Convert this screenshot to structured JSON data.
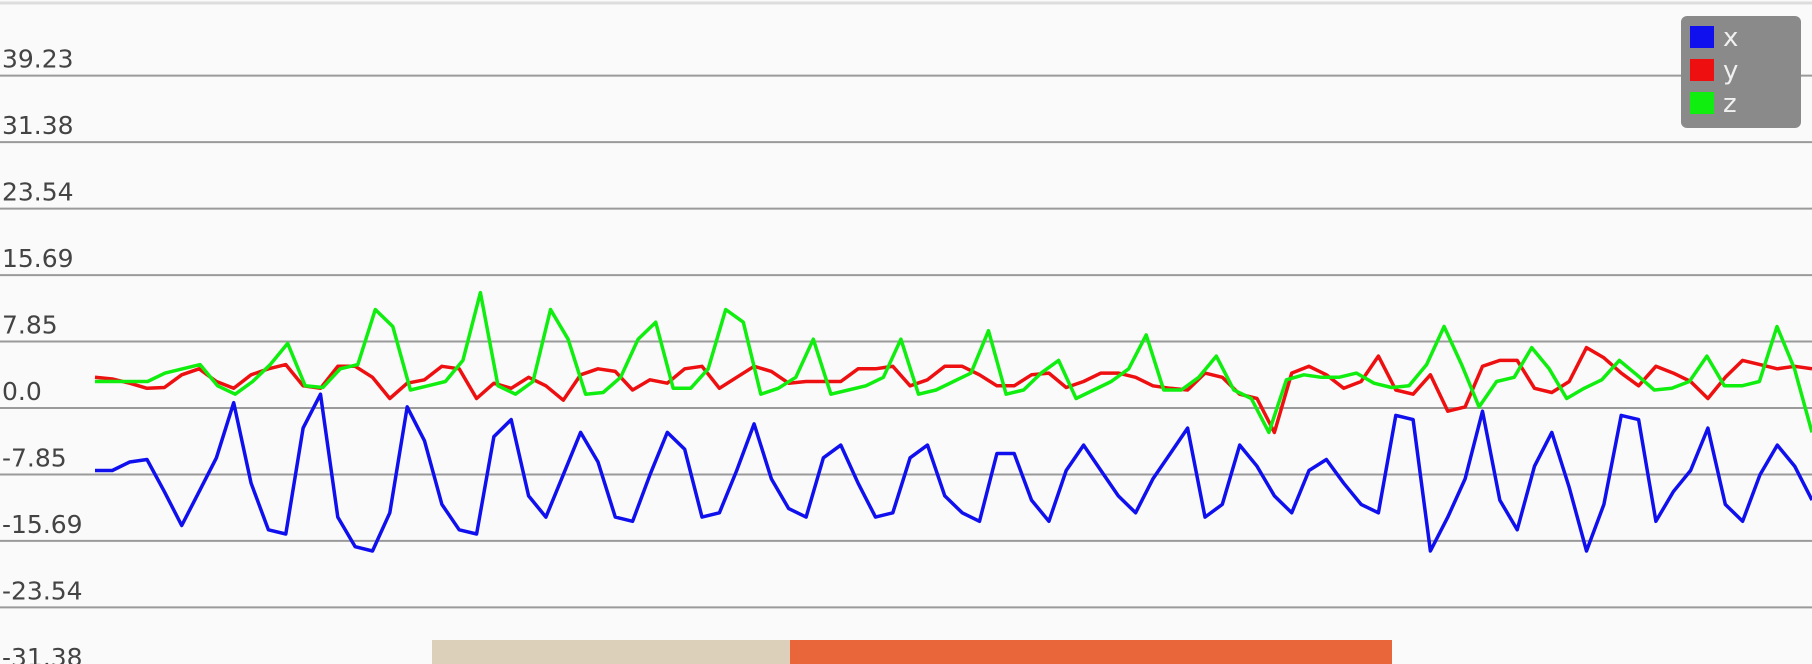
{
  "chart_data": {
    "type": "line",
    "y_ticks": [
      "39.23",
      "31.38",
      "23.54",
      "15.69",
      "7.85",
      "0.0",
      "-7.85",
      "-15.69",
      "-23.54",
      "-31.38"
    ],
    "y_tick_values": [
      39.23,
      31.38,
      23.54,
      15.69,
      7.85,
      0.0,
      -7.85,
      -15.69,
      -23.54,
      -31.38
    ],
    "ylim": [
      -31.38,
      45
    ],
    "grid": true,
    "legend_position": "top-right",
    "series": [
      {
        "name": "x",
        "color": "#1010ee",
        "values": [
          -9.5,
          -9.5,
          -8.5,
          -8.2,
          -12,
          -16,
          -12,
          -8,
          -1.5,
          -11,
          -16.5,
          -17,
          -4.5,
          -0.5,
          -15,
          -18.5,
          -19,
          -14.5,
          -2,
          -6,
          -13.5,
          -16.5,
          -17,
          -5.5,
          -3.5,
          -12.5,
          -15,
          -10,
          -5,
          -8.5,
          -15,
          -15.5,
          -10,
          -5,
          -7,
          -15,
          -14.5,
          -9.5,
          -4,
          -10.5,
          -14,
          -15,
          -8,
          -6.5,
          -11,
          -15,
          -14.5,
          -8,
          -6.5,
          -12.5,
          -14.5,
          -15.5,
          -7.5,
          -7.5,
          -13,
          -15.5,
          -9.5,
          -6.5,
          -9.5,
          -12.5,
          -14.5,
          -10.5,
          -7.5,
          -4.5,
          -15,
          -13.5,
          -6.5,
          -9,
          -12.5,
          -14.5,
          -9.5,
          -8.2,
          -11,
          -13.5,
          -14.5,
          -3,
          -3.5,
          -19,
          -15,
          -10.5,
          -2.5,
          -13,
          -16.5,
          -9,
          -5,
          -11.5,
          -19,
          -13.5,
          -3,
          -3.5,
          -15.5,
          -12,
          -9.5,
          -4.5,
          -13.5,
          -15.5,
          -10,
          -6.5,
          -9,
          -13
        ]
      },
      {
        "name": "y",
        "color": "#ee1010",
        "values": [
          1.5,
          1.3,
          0.8,
          0.2,
          0.3,
          1.8,
          2.5,
          1,
          0.2,
          1.8,
          2.5,
          3,
          0.5,
          0.2,
          2.8,
          2.8,
          1.5,
          -1,
          0.8,
          1.2,
          2.8,
          2.5,
          -1,
          0.8,
          0.2,
          1.5,
          0.5,
          -1.2,
          1.8,
          2.5,
          2.2,
          0,
          1.2,
          0.8,
          2.5,
          2.8,
          0.2,
          1.5,
          2.8,
          2.2,
          0.8,
          1,
          1,
          1,
          2.5,
          2.5,
          2.8,
          0.5,
          1.2,
          2.8,
          2.8,
          1.8,
          0.5,
          0.5,
          1.8,
          2,
          0.3,
          1,
          2,
          2,
          1.5,
          0.5,
          0.2,
          0,
          2,
          1.5,
          -0.5,
          -1,
          -5,
          2,
          2.8,
          1.8,
          0.2,
          1,
          4,
          0,
          -0.5,
          1.8,
          -2.5,
          -2,
          2.8,
          3.5,
          3.5,
          0.2,
          -0.3,
          1,
          5,
          3.8,
          2,
          0.5,
          2.8,
          2,
          1,
          -1,
          1.5,
          3.5,
          3,
          2.5,
          2.8,
          2.5
        ]
      },
      {
        "name": "z",
        "color": "#10ee10",
        "values": [
          1,
          1,
          1,
          1,
          2,
          2.5,
          3,
          0.5,
          -0.5,
          1,
          3,
          5.5,
          0.5,
          0.3,
          2.5,
          3,
          9.5,
          7.5,
          0,
          0.5,
          1,
          3.5,
          11.5,
          0.5,
          -0.5,
          1,
          9.5,
          6,
          -0.5,
          -0.3,
          1.5,
          6,
          8,
          0.2,
          0.2,
          2.5,
          9.5,
          8,
          -0.5,
          0.2,
          1.5,
          6,
          -0.5,
          0,
          0.5,
          1.5,
          6,
          -0.5,
          0,
          1,
          2,
          7,
          -0.5,
          0,
          2,
          3.5,
          -1,
          0,
          1,
          2.5,
          6.5,
          0,
          0,
          1.5,
          4,
          0,
          -1,
          -5,
          1.2,
          1.8,
          1.5,
          1.5,
          2,
          0.8,
          0.3,
          0.5,
          3,
          7.5,
          3,
          -2,
          1,
          1.5,
          5,
          2.5,
          -1,
          0.2,
          1.2,
          3.5,
          1.8,
          0,
          0.2,
          1,
          4,
          0.5,
          0.5,
          1,
          7.5,
          2.5,
          -5
        ]
      }
    ]
  }
}
